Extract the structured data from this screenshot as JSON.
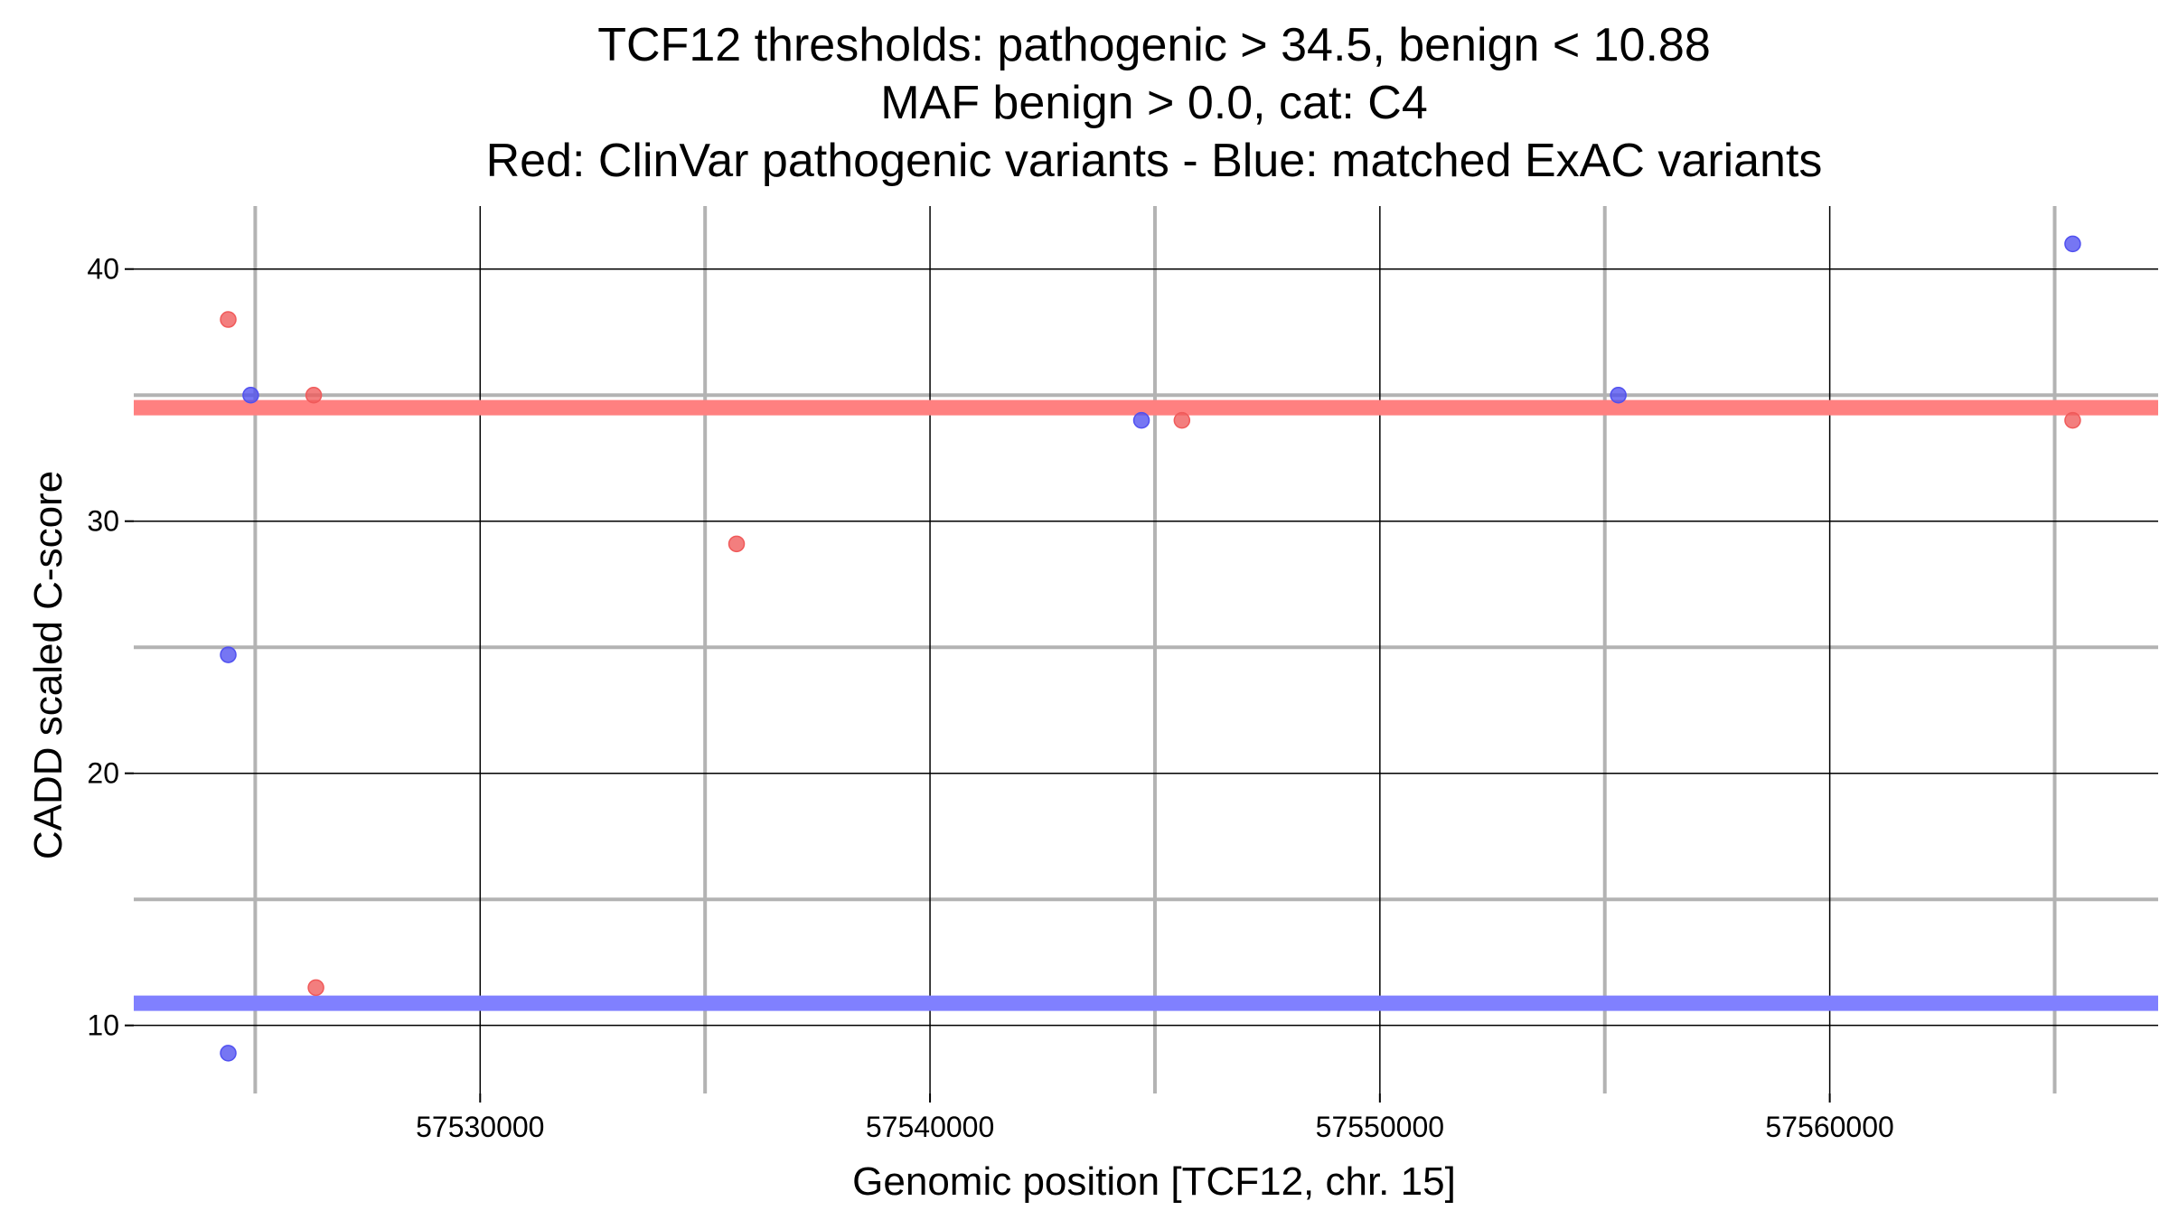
{
  "chart_data": {
    "type": "scatter",
    "title_lines": [
      "TCF12 thresholds: pathogenic > 34.5, benign < 10.88",
      "MAF benign > 0.0, cat: C4",
      "Red: ClinVar pathogenic variants - Blue: matched ExAC variants"
    ],
    "xlabel": "Genomic position [TCF12, chr. 15]",
    "ylabel": "CADD scaled C-score",
    "xlim": [
      57522300,
      57567300
    ],
    "ylim": [
      7.3,
      42.5
    ],
    "x_major_ticks": [
      57530000,
      57540000,
      57550000,
      57560000
    ],
    "x_tick_labels": [
      "57530000",
      "57540000",
      "57550000",
      "57560000"
    ],
    "x_minor_ticks": [
      57525000,
      57535000,
      57545000,
      57555000,
      57565000
    ],
    "y_major_ticks": [
      10,
      20,
      30,
      40
    ],
    "y_tick_labels": [
      "10",
      "20",
      "30",
      "40"
    ],
    "y_minor_ticks": [
      15,
      25,
      35
    ],
    "grid": true,
    "thresholds": [
      {
        "value": 34.5,
        "color": "#ff8080"
      },
      {
        "value": 10.88,
        "color": "#8080ff"
      }
    ],
    "series": [
      {
        "color": "#f05a5a",
        "points": [
          {
            "x": 57524400,
            "y": 38.0
          },
          {
            "x": 57526300,
            "y": 35.0
          },
          {
            "x": 57526350,
            "y": 11.5
          },
          {
            "x": 57535700,
            "y": 29.1
          },
          {
            "x": 57545600,
            "y": 34.0
          },
          {
            "x": 57565400,
            "y": 34.0
          }
        ]
      },
      {
        "color": "#5050f0",
        "points": [
          {
            "x": 57524400,
            "y": 24.7
          },
          {
            "x": 57524400,
            "y": 8.9
          },
          {
            "x": 57524900,
            "y": 35.0
          },
          {
            "x": 57544700,
            "y": 34.0
          },
          {
            "x": 57555300,
            "y": 35.0
          },
          {
            "x": 57565400,
            "y": 41.0
          }
        ]
      }
    ]
  }
}
